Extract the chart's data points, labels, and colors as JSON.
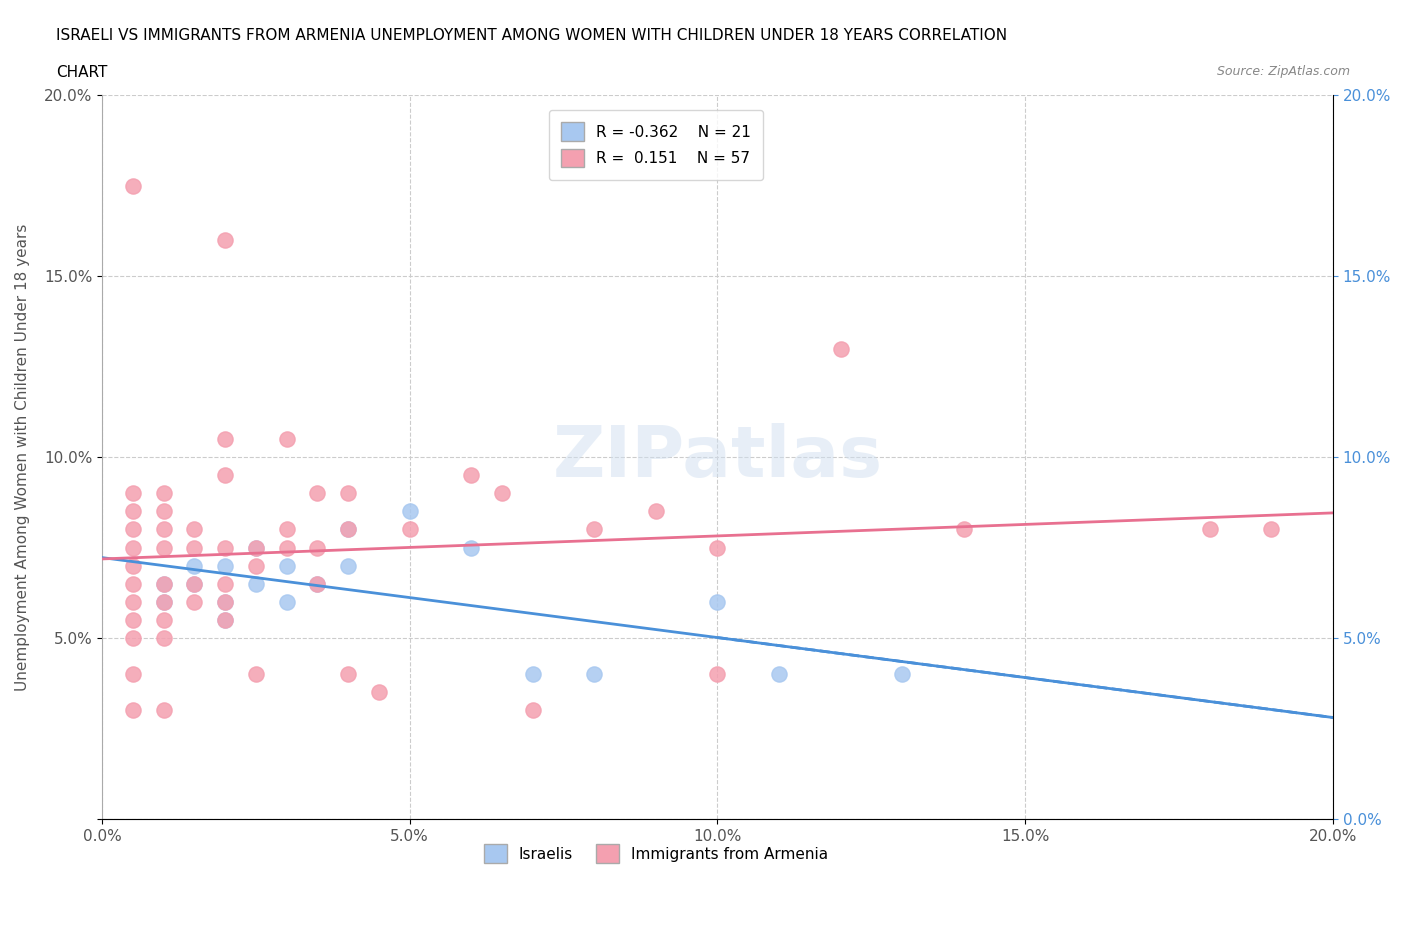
{
  "title_line1": "ISRAELI VS IMMIGRANTS FROM ARMENIA UNEMPLOYMENT AMONG WOMEN WITH CHILDREN UNDER 18 YEARS CORRELATION",
  "title_line2": "CHART",
  "source_text": "Source: ZipAtlas.com",
  "ylabel": "Unemployment Among Women with Children Under 18 years",
  "xlabel": "",
  "xlim": [
    0.0,
    0.2
  ],
  "ylim": [
    0.0,
    0.2
  ],
  "xtick_labels": [
    "0.0%",
    "5.0%",
    "10.0%",
    "15.0%",
    "20.0%"
  ],
  "xtick_vals": [
    0.0,
    0.05,
    0.1,
    0.15,
    0.2
  ],
  "ytick_labels": [
    "",
    "5.0%",
    "10.0%",
    "15.0%",
    "20.0%"
  ],
  "ytick_vals": [
    0.0,
    0.05,
    0.1,
    0.15,
    0.2
  ],
  "right_ytick_labels": [
    "20.0%",
    "15.0%",
    "10.0%",
    "5.0%",
    ""
  ],
  "watermark": "ZIPatlas",
  "legend_r_israeli": "-0.362",
  "legend_n_israeli": "21",
  "legend_r_armenia": "0.151",
  "legend_n_armenia": "57",
  "israeli_color": "#a8c8f0",
  "armenia_color": "#f4a0b0",
  "israeli_line_color": "#4a90d9",
  "armenia_line_color": "#e87090",
  "israeli_scatter": [
    [
      0.01,
      0.065
    ],
    [
      0.01,
      0.06
    ],
    [
      0.015,
      0.07
    ],
    [
      0.015,
      0.065
    ],
    [
      0.02,
      0.07
    ],
    [
      0.02,
      0.06
    ],
    [
      0.02,
      0.055
    ],
    [
      0.025,
      0.075
    ],
    [
      0.025,
      0.065
    ],
    [
      0.03,
      0.07
    ],
    [
      0.03,
      0.06
    ],
    [
      0.035,
      0.065
    ],
    [
      0.04,
      0.08
    ],
    [
      0.04,
      0.07
    ],
    [
      0.05,
      0.085
    ],
    [
      0.06,
      0.075
    ],
    [
      0.07,
      0.04
    ],
    [
      0.08,
      0.04
    ],
    [
      0.1,
      0.06
    ],
    [
      0.11,
      0.04
    ],
    [
      0.13,
      0.04
    ]
  ],
  "armenia_scatter": [
    [
      0.005,
      0.175
    ],
    [
      0.005,
      0.09
    ],
    [
      0.005,
      0.085
    ],
    [
      0.005,
      0.08
    ],
    [
      0.005,
      0.075
    ],
    [
      0.005,
      0.07
    ],
    [
      0.005,
      0.065
    ],
    [
      0.005,
      0.06
    ],
    [
      0.005,
      0.055
    ],
    [
      0.005,
      0.05
    ],
    [
      0.005,
      0.04
    ],
    [
      0.005,
      0.03
    ],
    [
      0.01,
      0.09
    ],
    [
      0.01,
      0.085
    ],
    [
      0.01,
      0.08
    ],
    [
      0.01,
      0.075
    ],
    [
      0.01,
      0.065
    ],
    [
      0.01,
      0.06
    ],
    [
      0.01,
      0.055
    ],
    [
      0.01,
      0.05
    ],
    [
      0.01,
      0.03
    ],
    [
      0.015,
      0.08
    ],
    [
      0.015,
      0.075
    ],
    [
      0.015,
      0.065
    ],
    [
      0.015,
      0.06
    ],
    [
      0.02,
      0.16
    ],
    [
      0.02,
      0.105
    ],
    [
      0.02,
      0.095
    ],
    [
      0.02,
      0.075
    ],
    [
      0.02,
      0.065
    ],
    [
      0.02,
      0.06
    ],
    [
      0.02,
      0.055
    ],
    [
      0.025,
      0.075
    ],
    [
      0.025,
      0.07
    ],
    [
      0.025,
      0.04
    ],
    [
      0.03,
      0.105
    ],
    [
      0.03,
      0.08
    ],
    [
      0.03,
      0.075
    ],
    [
      0.035,
      0.09
    ],
    [
      0.035,
      0.075
    ],
    [
      0.035,
      0.065
    ],
    [
      0.04,
      0.09
    ],
    [
      0.04,
      0.08
    ],
    [
      0.04,
      0.04
    ],
    [
      0.045,
      0.035
    ],
    [
      0.05,
      0.08
    ],
    [
      0.06,
      0.095
    ],
    [
      0.065,
      0.09
    ],
    [
      0.07,
      0.03
    ],
    [
      0.08,
      0.08
    ],
    [
      0.09,
      0.085
    ],
    [
      0.1,
      0.075
    ],
    [
      0.1,
      0.04
    ],
    [
      0.12,
      0.13
    ],
    [
      0.14,
      0.08
    ],
    [
      0.18,
      0.08
    ],
    [
      0.19,
      0.08
    ]
  ]
}
